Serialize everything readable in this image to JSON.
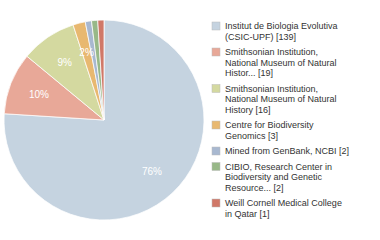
{
  "chart_data": {
    "type": "pie",
    "categories": [
      "Institut de Biologia Evolutiva\n(CSIC-UPF) [139]",
      "Smithsonian Institution,\nNational Museum of Natural\nHistor... [19]",
      "Smithsonian Institution,\nNational Museum of Natural\nHistory [16]",
      "Centre for Biodiversity\nGenomics [3]",
      "Mined from GenBank, NCBI [2]",
      "CIBIO, Research Center in\nBiodiversity and Genetic\nResource... [2]",
      "Weill Cornell Medical College\nin Qatar [1]"
    ],
    "values": [
      76,
      10,
      9,
      2,
      1,
      1,
      1
    ],
    "value_labels": [
      "76%",
      "10%",
      "9%",
      "2%",
      null,
      null,
      null
    ],
    "data_labels": true,
    "colors": [
      "#c5d3e0",
      "#e8a898",
      "#d4d9a0",
      "#e8b870",
      "#a8b8d0",
      "#98b888",
      "#d07868"
    ],
    "legend": "right"
  }
}
